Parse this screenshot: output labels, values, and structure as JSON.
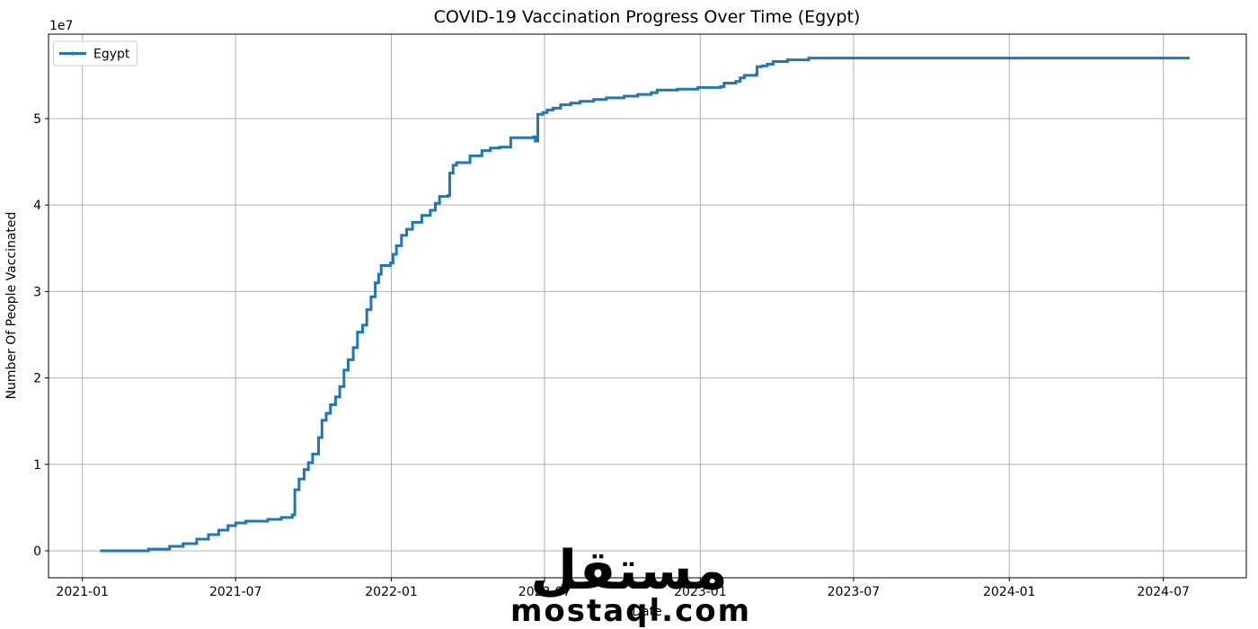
{
  "decorations": {
    "watermark": {
      "arabic": "مستقل",
      "latin": "mostaql.com",
      "color": "#d7d7d7"
    },
    "colors": {
      "series": "#1f77b4",
      "grid": "#b0b0b0",
      "axis": "#000000",
      "background": "#ffffff",
      "legend_border": "#cccccc"
    }
  },
  "chart_data": {
    "type": "line",
    "title": "COVID-19 Vaccination Progress Over Time (Egypt)",
    "xlabel": "Date",
    "ylabel": "Number Of People Vaccinated",
    "grid": true,
    "legend_position": "upper left",
    "x_axis": {
      "tick_labels": [
        "2021-01",
        "2021-07",
        "2022-01",
        "2022-07",
        "2023-01",
        "2023-07",
        "2024-01",
        "2024-07"
      ],
      "range": [
        "2020-11-22",
        "2024-10-07"
      ]
    },
    "y_axis": {
      "tick_labels": [
        "0",
        "1",
        "2",
        "3",
        "4",
        "5"
      ],
      "multiplier": 10000000,
      "offset_text": "1e7",
      "range": [
        -3120000,
        59770000
      ]
    },
    "series": [
      {
        "name": "Egypt",
        "color": "#1f77b4",
        "style": "step-after",
        "points": [
          [
            "2021-01-22",
            0
          ],
          [
            "2021-03-20",
            200000
          ],
          [
            "2021-04-14",
            520000
          ],
          [
            "2021-04-30",
            830000
          ],
          [
            "2021-05-16",
            1350000
          ],
          [
            "2021-05-30",
            1870000
          ],
          [
            "2021-06-11",
            2390000
          ],
          [
            "2021-06-22",
            2910000
          ],
          [
            "2021-07-01",
            3220000
          ],
          [
            "2021-07-13",
            3430000
          ],
          [
            "2021-08-08",
            3640000
          ],
          [
            "2021-08-24",
            3850000
          ],
          [
            "2021-09-06",
            4160000
          ],
          [
            "2021-09-09",
            7070000
          ],
          [
            "2021-09-14",
            8300000
          ],
          [
            "2021-09-20",
            9400000
          ],
          [
            "2021-09-25",
            10200000
          ],
          [
            "2021-09-30",
            11200000
          ],
          [
            "2021-10-07",
            13100000
          ],
          [
            "2021-10-11",
            15100000
          ],
          [
            "2021-10-16",
            15900000
          ],
          [
            "2021-10-21",
            16900000
          ],
          [
            "2021-10-27",
            17800000
          ],
          [
            "2021-11-01",
            19000000
          ],
          [
            "2021-11-06",
            20900000
          ],
          [
            "2021-11-11",
            22100000
          ],
          [
            "2021-11-17",
            23500000
          ],
          [
            "2021-11-22",
            25300000
          ],
          [
            "2021-11-28",
            26100000
          ],
          [
            "2021-12-03",
            27900000
          ],
          [
            "2021-12-08",
            29400000
          ],
          [
            "2021-12-13",
            31000000
          ],
          [
            "2021-12-17",
            32000000
          ],
          [
            "2021-12-20",
            33000000
          ],
          [
            "2021-12-31",
            33300000
          ],
          [
            "2022-01-03",
            34300000
          ],
          [
            "2022-01-07",
            35300000
          ],
          [
            "2022-01-13",
            36500000
          ],
          [
            "2022-01-19",
            37200000
          ],
          [
            "2022-01-26",
            38000000
          ],
          [
            "2022-02-06",
            38800000
          ],
          [
            "2022-02-16",
            39400000
          ],
          [
            "2022-02-22",
            40200000
          ],
          [
            "2022-02-27",
            41000000
          ],
          [
            "2022-03-09",
            41100000
          ],
          [
            "2022-03-11",
            43700000
          ],
          [
            "2022-03-15",
            44600000
          ],
          [
            "2022-03-19",
            44900000
          ],
          [
            "2022-04-04",
            45700000
          ],
          [
            "2022-04-18",
            46300000
          ],
          [
            "2022-04-28",
            46600000
          ],
          [
            "2022-05-09",
            46700000
          ],
          [
            "2022-05-22",
            47800000
          ],
          [
            "2022-06-18",
            47900000
          ],
          [
            "2022-06-20",
            47400000
          ],
          [
            "2022-06-23",
            50500000
          ],
          [
            "2022-06-29",
            50700000
          ],
          [
            "2022-07-04",
            51000000
          ],
          [
            "2022-07-11",
            51200000
          ],
          [
            "2022-07-20",
            51600000
          ],
          [
            "2022-08-01",
            51800000
          ],
          [
            "2022-08-12",
            52000000
          ],
          [
            "2022-08-28",
            52200000
          ],
          [
            "2022-09-12",
            52400000
          ],
          [
            "2022-10-03",
            52600000
          ],
          [
            "2022-10-19",
            52800000
          ],
          [
            "2022-11-04",
            53000000
          ],
          [
            "2022-11-11",
            53300000
          ],
          [
            "2022-12-05",
            53400000
          ],
          [
            "2022-12-29",
            53600000
          ],
          [
            "2023-01-25",
            53700000
          ],
          [
            "2023-01-29",
            54100000
          ],
          [
            "2023-02-12",
            54300000
          ],
          [
            "2023-02-17",
            54700000
          ],
          [
            "2023-02-22",
            55000000
          ],
          [
            "2023-03-08",
            55100000
          ],
          [
            "2023-03-09",
            56000000
          ],
          [
            "2023-03-15",
            56100000
          ],
          [
            "2023-03-21",
            56300000
          ],
          [
            "2023-03-28",
            56600000
          ],
          [
            "2023-04-14",
            56800000
          ],
          [
            "2023-05-09",
            57000000
          ],
          [
            "2024-08-01",
            57000000
          ]
        ]
      }
    ]
  }
}
